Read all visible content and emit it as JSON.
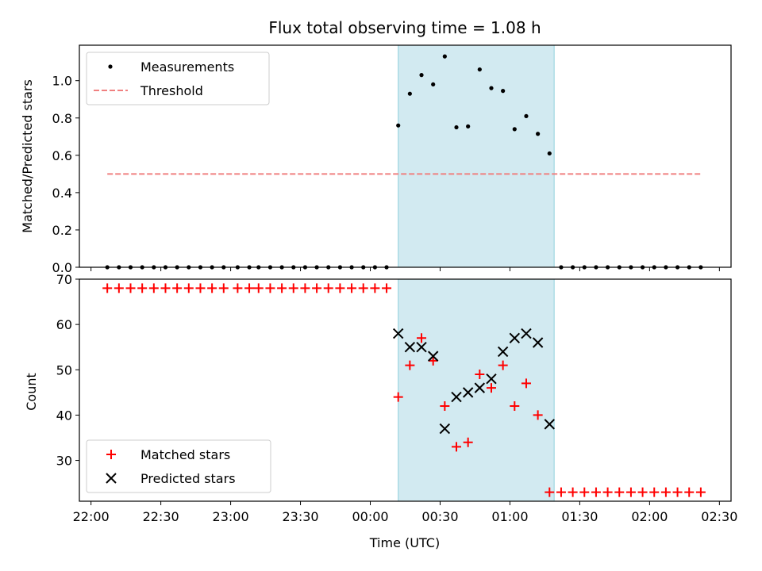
{
  "chart_data": [
    {
      "type": "scatter",
      "title": "Flux total observing time = 1.08 h",
      "xlabel": "",
      "ylabel": "Matched/Predicted stars",
      "xlim": [
        "21:55",
        "02:35"
      ],
      "ylim": [
        0,
        1.19
      ],
      "y_ticks": [
        "0.0",
        "0.2",
        "0.4",
        "0.6",
        "0.8",
        "1.0"
      ],
      "legend_position": "top-left",
      "shaded_interval": {
        "start": "00:12",
        "end": "01:19",
        "color": "#add8e6"
      },
      "series": [
        {
          "name": "Measurements",
          "marker": "dot",
          "color": "#000000",
          "x": [
            "22:07",
            "22:12",
            "22:17",
            "22:22",
            "22:27",
            "22:32",
            "22:37",
            "22:42",
            "22:47",
            "22:52",
            "22:57",
            "23:03",
            "23:08",
            "23:12",
            "23:17",
            "23:22",
            "23:27",
            "23:32",
            "23:37",
            "23:42",
            "23:47",
            "23:52",
            "23:57",
            "00:02",
            "00:07",
            "00:12",
            "00:17",
            "00:22",
            "00:27",
            "00:32",
            "00:37",
            "00:42",
            "00:47",
            "00:52",
            "00:57",
            "01:02",
            "01:07",
            "01:12",
            "01:17",
            "01:22",
            "01:27",
            "01:32",
            "01:37",
            "01:42",
            "01:47",
            "01:52",
            "01:57",
            "02:02",
            "02:07",
            "02:12",
            "02:17",
            "02:22"
          ],
          "y": [
            0,
            0,
            0,
            0,
            0,
            0,
            0,
            0,
            0,
            0,
            0,
            0,
            0,
            0,
            0,
            0,
            0,
            0,
            0,
            0,
            0,
            0,
            0,
            0,
            0,
            0.76,
            0.93,
            1.03,
            0.98,
            1.13,
            0.75,
            0.755,
            1.06,
            0.96,
            0.945,
            0.74,
            0.81,
            0.715,
            0.61,
            0,
            0,
            0,
            0,
            0,
            0,
            0,
            0,
            0,
            0,
            0,
            0,
            0
          ]
        },
        {
          "name": "Threshold",
          "style": "dashed",
          "color": "#f08080",
          "x": [
            "22:07",
            "02:22"
          ],
          "y": [
            0.5,
            0.5
          ]
        }
      ]
    },
    {
      "type": "scatter",
      "title": "",
      "xlabel": "Time (UTC)",
      "ylabel": "Count",
      "xlim": [
        "21:55",
        "02:35"
      ],
      "ylim": [
        21,
        70
      ],
      "x_ticks": [
        "22:00",
        "22:30",
        "23:00",
        "23:30",
        "00:00",
        "00:30",
        "01:00",
        "01:30",
        "02:00",
        "02:30"
      ],
      "y_ticks": [
        "30",
        "40",
        "50",
        "60",
        "70"
      ],
      "legend_position": "bottom-left",
      "shaded_interval": {
        "start": "00:12",
        "end": "01:19",
        "color": "#add8e6"
      },
      "series": [
        {
          "name": "Matched stars",
          "marker": "plus",
          "color": "#ff0000",
          "x": [
            "22:07",
            "22:12",
            "22:17",
            "22:22",
            "22:27",
            "22:32",
            "22:37",
            "22:42",
            "22:47",
            "22:52",
            "22:57",
            "23:03",
            "23:08",
            "23:12",
            "23:17",
            "23:22",
            "23:27",
            "23:32",
            "23:37",
            "23:42",
            "23:47",
            "23:52",
            "23:57",
            "00:02",
            "00:07",
            "00:12",
            "00:17",
            "00:22",
            "00:27",
            "00:32",
            "00:37",
            "00:42",
            "00:47",
            "00:52",
            "00:57",
            "01:02",
            "01:07",
            "01:12",
            "01:17",
            "01:22",
            "01:27",
            "01:32",
            "01:37",
            "01:42",
            "01:47",
            "01:52",
            "01:57",
            "02:02",
            "02:07",
            "02:12",
            "02:17",
            "02:22"
          ],
          "y": [
            68,
            68,
            68,
            68,
            68,
            68,
            68,
            68,
            68,
            68,
            68,
            68,
            68,
            68,
            68,
            68,
            68,
            68,
            68,
            68,
            68,
            68,
            68,
            68,
            68,
            44,
            51,
            57,
            52,
            42,
            33,
            34,
            49,
            46,
            51,
            42,
            47,
            40,
            23,
            23,
            23,
            23,
            23,
            23,
            23,
            23,
            23,
            23,
            23,
            23,
            23,
            23
          ]
        },
        {
          "name": "Predicted stars",
          "marker": "x",
          "color": "#000000",
          "x": [
            "00:12",
            "00:17",
            "00:22",
            "00:27",
            "00:32",
            "00:37",
            "00:42",
            "00:47",
            "00:52",
            "00:57",
            "01:02",
            "01:07",
            "01:12",
            "01:17"
          ],
          "y": [
            58,
            55,
            55,
            53,
            37,
            44,
            45,
            46,
            48,
            54,
            57,
            58,
            56,
            38
          ]
        }
      ]
    }
  ]
}
